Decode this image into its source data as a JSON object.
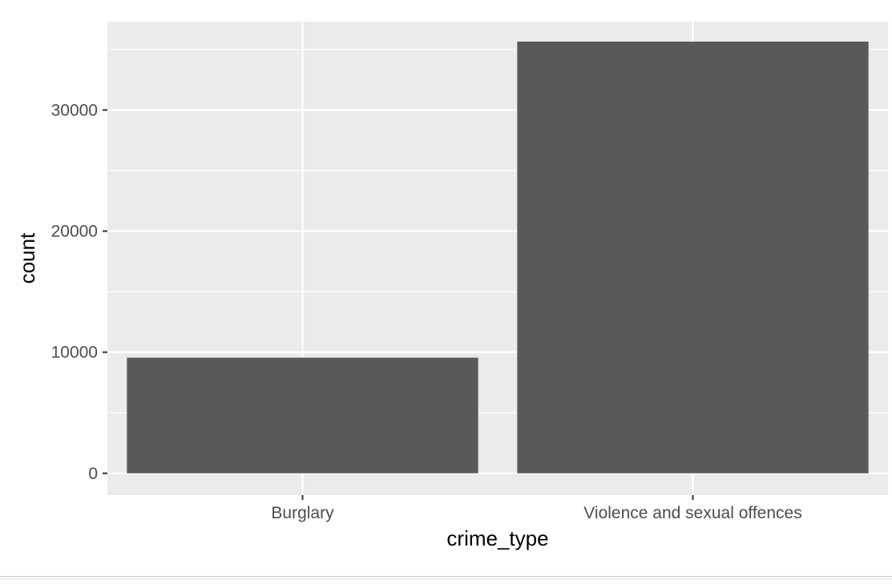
{
  "chart_data": {
    "type": "bar",
    "title": "",
    "xlabel": "crime_type",
    "ylabel": "count",
    "categories": [
      "Burglary",
      "Violence and sexual offences"
    ],
    "values": [
      9550,
      35650
    ],
    "ylim": [
      -1800,
      37300
    ],
    "yticks": [
      0,
      10000,
      20000,
      30000
    ],
    "ytick_labels": [
      "0",
      "10000",
      "20000",
      "30000"
    ],
    "grid": true,
    "legend": "none",
    "colors": {
      "panel": "#ebebeb",
      "grid": "#ffffff",
      "bar": "#595959",
      "tick_text": "#4d4d4d",
      "title_text": "#000000"
    }
  }
}
